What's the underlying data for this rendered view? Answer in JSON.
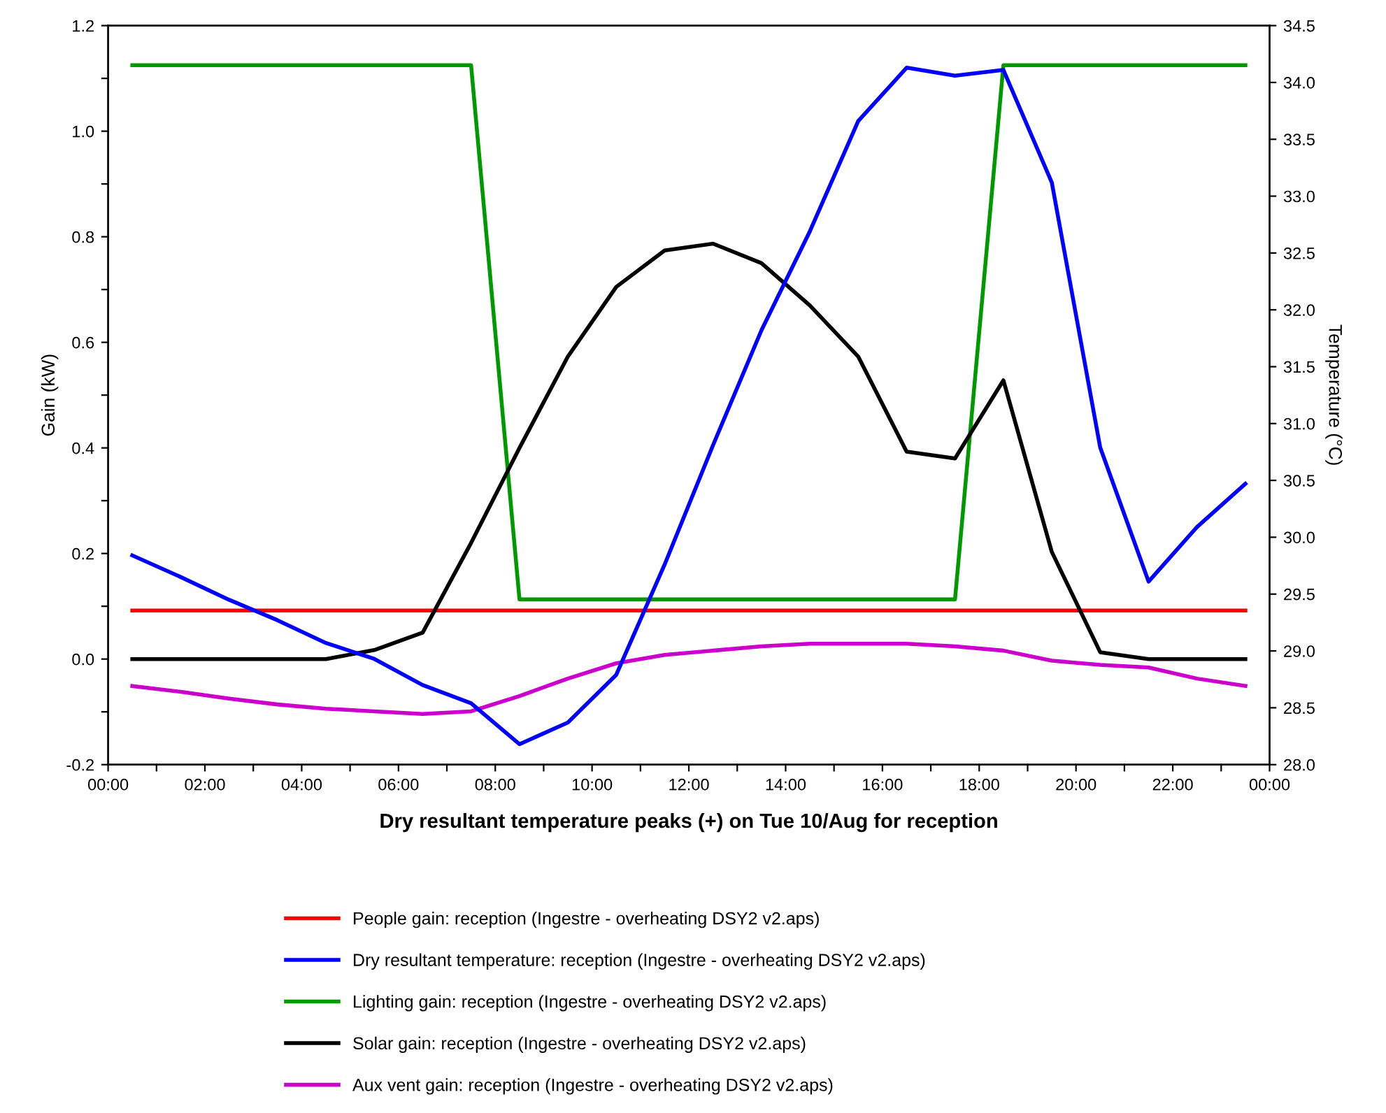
{
  "chart_data": {
    "type": "line",
    "xlabel": "Dry resultant temperature peaks (+) on Tue 10/Aug for reception",
    "ylabel": "Gain (kW)",
    "y2label": "Temperature (°C)",
    "x": [
      0.5,
      1.5,
      2.5,
      3.5,
      4.5,
      5.5,
      6.5,
      7.5,
      8.5,
      9.5,
      10.5,
      11.5,
      12.5,
      13.5,
      14.5,
      15.5,
      16.5,
      17.5,
      18.5,
      19.5,
      20.5,
      21.5,
      22.5,
      23.5
    ],
    "series": [
      {
        "name": "People gain: reception (Ingestre - overheating DSY2 v2.aps)",
        "color": "#ff0000",
        "values": [
          0.092,
          0.092,
          0.092,
          0.092,
          0.092,
          0.092,
          0.092,
          0.092,
          0.092,
          0.092,
          0.092,
          0.092,
          0.092,
          0.092,
          0.092,
          0.092,
          0.092,
          0.092,
          0.092,
          0.092,
          0.092,
          0.092,
          0.092,
          0.092
        ]
      },
      {
        "name": "Dry resultant temperature: reception (Ingestre - overheating DSY2 v2.aps)",
        "color": "#0000ff",
        "axis": "y2",
        "values": [
          29.84,
          29.65,
          29.45,
          29.27,
          29.07,
          28.93,
          28.7,
          28.54,
          28.18,
          28.37,
          28.79,
          29.76,
          30.81,
          31.82,
          32.69,
          33.66,
          34.13,
          34.06,
          34.11,
          33.12,
          30.79,
          29.61,
          30.09,
          30.47
        ]
      },
      {
        "name": "Lighting gain: reception (Ingestre - overheating DSY2 v2.aps)",
        "color": "#009900",
        "values": [
          1.125,
          1.125,
          1.125,
          1.125,
          1.125,
          1.125,
          1.125,
          1.125,
          0.113,
          0.113,
          0.113,
          0.113,
          0.113,
          0.113,
          0.113,
          0.113,
          0.113,
          0.113,
          1.125,
          1.125,
          1.125,
          1.125,
          1.125,
          1.125
        ]
      },
      {
        "name": "Solar gain: reception (Ingestre - overheating DSY2 v2.aps)",
        "color": "#000000",
        "values": [
          0,
          0,
          0,
          0,
          0,
          0.017,
          0.05,
          0.22,
          0.4,
          0.573,
          0.705,
          0.774,
          0.787,
          0.75,
          0.67,
          0.573,
          0.393,
          0.38,
          0.528,
          0.203,
          0.013,
          0,
          0,
          0
        ]
      },
      {
        "name": "Aux vent gain: reception (Ingestre - overheating DSY2 v2.aps)",
        "color": "#cc00cc",
        "values": [
          -0.051,
          -0.062,
          -0.075,
          -0.086,
          -0.094,
          -0.099,
          -0.104,
          -0.099,
          -0.07,
          -0.037,
          -0.008,
          0.008,
          0.016,
          0.024,
          0.029,
          0.029,
          0.029,
          0.024,
          0.016,
          -0.003,
          -0.011,
          -0.016,
          -0.037,
          -0.051
        ]
      }
    ],
    "xlim": [
      0,
      24
    ],
    "xticks": [
      {
        "value": 0,
        "label": "00:00"
      },
      {
        "value": 1,
        "label": null
      },
      {
        "value": 2,
        "label": "02:00"
      },
      {
        "value": 3,
        "label": null
      },
      {
        "value": 4,
        "label": "04:00"
      },
      {
        "value": 5,
        "label": null
      },
      {
        "value": 6,
        "label": "06:00"
      },
      {
        "value": 7,
        "label": null
      },
      {
        "value": 8,
        "label": "08:00"
      },
      {
        "value": 9,
        "label": null
      },
      {
        "value": 10,
        "label": "10:00"
      },
      {
        "value": 11,
        "label": null
      },
      {
        "value": 12,
        "label": "12:00"
      },
      {
        "value": 13,
        "label": null
      },
      {
        "value": 14,
        "label": "14:00"
      },
      {
        "value": 15,
        "label": null
      },
      {
        "value": 16,
        "label": "16:00"
      },
      {
        "value": 17,
        "label": null
      },
      {
        "value": 18,
        "label": "18:00"
      },
      {
        "value": 19,
        "label": null
      },
      {
        "value": 20,
        "label": "20:00"
      },
      {
        "value": 21,
        "label": null
      },
      {
        "value": 22,
        "label": "22:00"
      },
      {
        "value": 23,
        "label": null
      },
      {
        "value": 24,
        "label": "00:00"
      }
    ],
    "ylim": [
      -0.2,
      1.2
    ],
    "yticks": [
      {
        "value": -0.2,
        "label": "-0.2"
      },
      {
        "value": -0.1,
        "label": null
      },
      {
        "value": 0,
        "label": "0.0"
      },
      {
        "value": 0.1,
        "label": null
      },
      {
        "value": 0.2,
        "label": "0.2"
      },
      {
        "value": 0.3,
        "label": null
      },
      {
        "value": 0.4,
        "label": "0.4"
      },
      {
        "value": 0.5,
        "label": null
      },
      {
        "value": 0.6,
        "label": "0.6"
      },
      {
        "value": 0.7,
        "label": null
      },
      {
        "value": 0.8,
        "label": "0.8"
      },
      {
        "value": 0.9,
        "label": null
      },
      {
        "value": 1.0,
        "label": "1.0"
      },
      {
        "value": 1.1,
        "label": null
      },
      {
        "value": 1.2,
        "label": "1.2"
      }
    ],
    "y2lim": [
      28,
      34.5
    ],
    "y2ticks": [
      {
        "value": 28,
        "label": "28.0"
      },
      {
        "value": 28.5,
        "label": "28.5"
      },
      {
        "value": 29,
        "label": "29.0"
      },
      {
        "value": 29.5,
        "label": "29.5"
      },
      {
        "value": 30,
        "label": "30.0"
      },
      {
        "value": 30.5,
        "label": "30.5"
      },
      {
        "value": 31,
        "label": "31.0"
      },
      {
        "value": 31.5,
        "label": "31.5"
      },
      {
        "value": 32,
        "label": "32.0"
      },
      {
        "value": 32.5,
        "label": "32.5"
      },
      {
        "value": 33,
        "label": "33.0"
      },
      {
        "value": 33.5,
        "label": "33.5"
      },
      {
        "value": 34,
        "label": "34.0"
      },
      {
        "value": 34.5,
        "label": "34.5"
      }
    ],
    "legend": "bottom",
    "grid": false,
    "marker": "none",
    "line_style": "solid"
  }
}
